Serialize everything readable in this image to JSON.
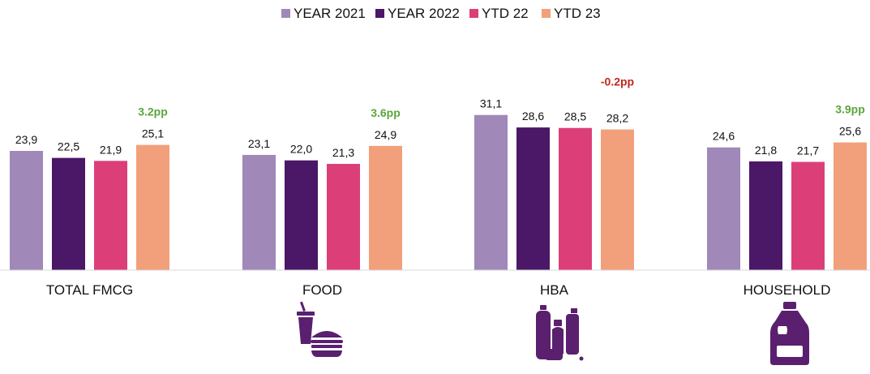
{
  "chart_data": {
    "type": "bar",
    "categories": [
      "TOTAL FMCG",
      "FOOD",
      "HBA",
      "HOUSEHOLD"
    ],
    "series": [
      {
        "name": "YEAR 2021",
        "color": "#a088b8",
        "values": [
          23.9,
          23.1,
          31.1,
          24.6
        ],
        "labels": [
          "23,9",
          "23,1",
          "31,1",
          "24,6"
        ]
      },
      {
        "name": "YEAR 2022",
        "color": "#4b1767",
        "values": [
          22.5,
          22.0,
          28.6,
          21.8
        ],
        "labels": [
          "22,5",
          "22,0",
          "28,6",
          "21,8"
        ]
      },
      {
        "name": "YTD 22",
        "color": "#dc3f78",
        "values": [
          21.9,
          21.3,
          28.5,
          21.7
        ],
        "labels": [
          "21,9",
          "21,3",
          "28,5",
          "21,7"
        ]
      },
      {
        "name": "YTD 23",
        "color": "#f2a07b",
        "values": [
          25.1,
          24.9,
          28.2,
          25.6
        ],
        "labels": [
          "25,1",
          "24,9",
          "28,2",
          "25,6"
        ]
      }
    ],
    "annotations": [
      {
        "category": "TOTAL FMCG",
        "text": "3.2pp",
        "color": "#5aa63a"
      },
      {
        "category": "FOOD",
        "text": "3.6pp",
        "color": "#5aa63a"
      },
      {
        "category": "HBA",
        "text": "-0.2pp",
        "color": "#c0281e"
      },
      {
        "category": "HOUSEHOLD",
        "text": "3.9pp",
        "color": "#5aa63a"
      }
    ],
    "legend_position": "top-center",
    "grid": false,
    "ylim": [
      0,
      40
    ],
    "category_icons": [
      "",
      "fast-food-icon",
      "toiletries-icon",
      "detergent-bottle-icon"
    ]
  }
}
